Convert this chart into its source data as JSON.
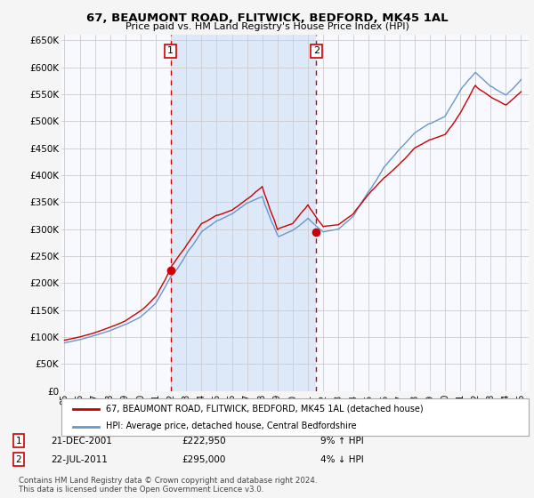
{
  "title": "67, BEAUMONT ROAD, FLITWICK, BEDFORD, MK45 1AL",
  "subtitle": "Price paid vs. HM Land Registry's House Price Index (HPI)",
  "background_color": "#f5f5f5",
  "plot_bg_color": "#f8f8ff",
  "grid_color": "#cccccc",
  "shade_color": "#dde8f8",
  "ylim": [
    0,
    660000
  ],
  "yticks": [
    0,
    50000,
    100000,
    150000,
    200000,
    250000,
    300000,
    350000,
    400000,
    450000,
    500000,
    550000,
    600000,
    650000
  ],
  "legend_label_red": "67, BEAUMONT ROAD, FLITWICK, BEDFORD, MK45 1AL (detached house)",
  "legend_label_blue": "HPI: Average price, detached house, Central Bedfordshire",
  "transaction1_date": "21-DEC-2001",
  "transaction1_price": "£222,950",
  "transaction1_hpi": "9% ↑ HPI",
  "transaction2_date": "22-JUL-2011",
  "transaction2_price": "£295,000",
  "transaction2_hpi": "4% ↓ HPI",
  "footer": "Contains HM Land Registry data © Crown copyright and database right 2024.\nThis data is licensed under the Open Government Licence v3.0.",
  "red_color": "#cc0000",
  "blue_color": "#6699cc",
  "marker1_year": 2001.97,
  "marker1_value": 222950,
  "marker2_year": 2011.55,
  "marker2_value": 295000,
  "vline1_year": 2001.97,
  "vline2_year": 2011.55,
  "xlim_left": 1994.8,
  "xlim_right": 2025.5
}
